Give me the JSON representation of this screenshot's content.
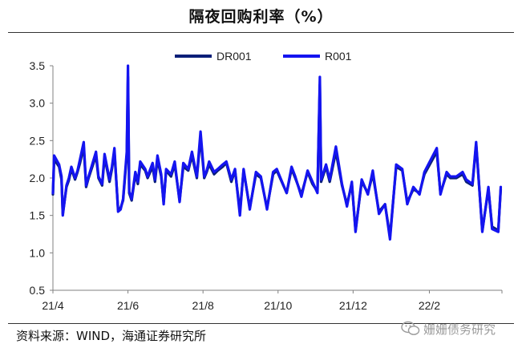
{
  "title": "隔夜回购利率（%）",
  "source": "资料来源：WIND，海通证券研究所",
  "watermark": "姗姗债务研究",
  "colors": {
    "dr001": "#0a1f78",
    "r001": "#1414f0",
    "axis": "#808080",
    "text": "#222222"
  },
  "chart_data": {
    "type": "line",
    "title": "隔夜回购利率（%）",
    "xlabel": "",
    "ylabel": "",
    "ylim": [
      0.5,
      3.5
    ],
    "yticks": [
      0.5,
      1.0,
      1.5,
      2.0,
      2.5,
      3.0,
      3.5
    ],
    "ytick_labels": [
      "0.5",
      "1.0",
      "1.5",
      "2.0",
      "2.5",
      "3.0",
      "3.5"
    ],
    "xlim": [
      "2021-04-01",
      "2022-04-01"
    ],
    "xtick_dates": [
      "2021-04-01",
      "2021-06-01",
      "2021-08-01",
      "2021-10-01",
      "2021-12-01",
      "2022-02-01"
    ],
    "xtick_labels": [
      "21/4",
      "21/6",
      "21/8",
      "21/10",
      "21/12",
      "22/2"
    ],
    "legend": "top-center",
    "grid": false,
    "series": [
      {
        "name": "DR001",
        "x": [
          "2021-04-01",
          "2021-04-02",
          "2021-04-06",
          "2021-04-08",
          "2021-04-09",
          "2021-04-12",
          "2021-04-14",
          "2021-04-16",
          "2021-04-19",
          "2021-04-21",
          "2021-04-23",
          "2021-04-26",
          "2021-04-28",
          "2021-04-30",
          "2021-05-06",
          "2021-05-08",
          "2021-05-11",
          "2021-05-13",
          "2021-05-17",
          "2021-05-19",
          "2021-05-21",
          "2021-05-24",
          "2021-05-26",
          "2021-05-28",
          "2021-05-31",
          "2021-06-01",
          "2021-06-02",
          "2021-06-04",
          "2021-06-07",
          "2021-06-09",
          "2021-06-11",
          "2021-06-15",
          "2021-06-17",
          "2021-06-21",
          "2021-06-23",
          "2021-06-25",
          "2021-06-28",
          "2021-06-30",
          "2021-07-02",
          "2021-07-06",
          "2021-07-09",
          "2021-07-13",
          "2021-07-16",
          "2021-07-20",
          "2021-07-23",
          "2021-07-27",
          "2021-07-30",
          "2021-08-02",
          "2021-08-04",
          "2021-08-06",
          "2021-08-10",
          "2021-08-13",
          "2021-08-17",
          "2021-08-20",
          "2021-08-24",
          "2021-08-27",
          "2021-08-31",
          "2021-09-03",
          "2021-09-08",
          "2021-09-13",
          "2021-09-17",
          "2021-09-22",
          "2021-09-27",
          "2021-09-30",
          "2021-10-08",
          "2021-10-12",
          "2021-10-15",
          "2021-10-20",
          "2021-10-25",
          "2021-10-29",
          "2021-11-02",
          "2021-11-04",
          "2021-11-05",
          "2021-11-09",
          "2021-11-12",
          "2021-11-17",
          "2021-11-22",
          "2021-11-26",
          "2021-11-30",
          "2021-12-03",
          "2021-12-08",
          "2021-12-13",
          "2021-12-17",
          "2021-12-22",
          "2021-12-27",
          "2021-12-31",
          "2022-01-05",
          "2022-01-10",
          "2022-01-14",
          "2022-01-19",
          "2022-01-24",
          "2022-01-28",
          "2022-02-07",
          "2022-02-10",
          "2022-02-15",
          "2022-02-18",
          "2022-02-23",
          "2022-02-28",
          "2022-03-03",
          "2022-03-08",
          "2022-03-11",
          "2022-03-16",
          "2022-03-21",
          "2022-03-24",
          "2022-03-29",
          "2022-03-31"
        ],
        "values": [
          1.78,
          2.25,
          2.15,
          1.98,
          1.52,
          1.88,
          1.97,
          2.12,
          1.98,
          2.08,
          2.2,
          2.42,
          1.88,
          2.0,
          2.3,
          2.0,
          1.9,
          2.28,
          1.95,
          2.12,
          2.35,
          1.58,
          1.6,
          1.7,
          2.3,
          3.35,
          1.8,
          1.7,
          2.05,
          1.92,
          2.18,
          2.1,
          2.0,
          2.15,
          1.95,
          2.25,
          2.02,
          1.68,
          2.1,
          2.02,
          2.18,
          1.7,
          2.15,
          2.1,
          2.3,
          2.0,
          2.55,
          2.0,
          2.08,
          2.18,
          2.05,
          2.1,
          2.15,
          2.2,
          1.95,
          2.1,
          1.55,
          2.1,
          1.6,
          2.05,
          2.0,
          1.6,
          2.05,
          2.1,
          1.8,
          2.12,
          2.0,
          1.78,
          2.08,
          1.92,
          1.82,
          3.25,
          1.95,
          2.15,
          1.95,
          2.35,
          1.9,
          1.65,
          1.92,
          1.3,
          1.95,
          1.8,
          2.05,
          1.55,
          1.65,
          1.22,
          2.15,
          2.1,
          1.68,
          1.85,
          1.8,
          2.05,
          2.35,
          1.8,
          2.05,
          2.0,
          2.0,
          2.05,
          1.95,
          1.9,
          2.45,
          1.3,
          1.85,
          1.35,
          1.3,
          1.85
        ]
      },
      {
        "name": "R001",
        "x": [
          "2021-04-01",
          "2021-04-02",
          "2021-04-06",
          "2021-04-08",
          "2021-04-09",
          "2021-04-12",
          "2021-04-14",
          "2021-04-16",
          "2021-04-19",
          "2021-04-21",
          "2021-04-23",
          "2021-04-26",
          "2021-04-28",
          "2021-04-30",
          "2021-05-06",
          "2021-05-08",
          "2021-05-11",
          "2021-05-13",
          "2021-05-17",
          "2021-05-19",
          "2021-05-21",
          "2021-05-24",
          "2021-05-26",
          "2021-05-28",
          "2021-05-31",
          "2021-06-01",
          "2021-06-02",
          "2021-06-04",
          "2021-06-07",
          "2021-06-09",
          "2021-06-11",
          "2021-06-15",
          "2021-06-17",
          "2021-06-21",
          "2021-06-23",
          "2021-06-25",
          "2021-06-28",
          "2021-06-30",
          "2021-07-02",
          "2021-07-06",
          "2021-07-09",
          "2021-07-13",
          "2021-07-16",
          "2021-07-20",
          "2021-07-23",
          "2021-07-27",
          "2021-07-30",
          "2021-08-02",
          "2021-08-04",
          "2021-08-06",
          "2021-08-10",
          "2021-08-13",
          "2021-08-17",
          "2021-08-20",
          "2021-08-24",
          "2021-08-27",
          "2021-08-31",
          "2021-09-03",
          "2021-09-08",
          "2021-09-13",
          "2021-09-17",
          "2021-09-22",
          "2021-09-27",
          "2021-09-30",
          "2021-10-08",
          "2021-10-12",
          "2021-10-15",
          "2021-10-20",
          "2021-10-25",
          "2021-10-29",
          "2021-11-02",
          "2021-11-04",
          "2021-11-05",
          "2021-11-09",
          "2021-11-12",
          "2021-11-17",
          "2021-11-22",
          "2021-11-26",
          "2021-11-30",
          "2021-12-03",
          "2021-12-08",
          "2021-12-13",
          "2021-12-17",
          "2021-12-22",
          "2021-12-27",
          "2021-12-31",
          "2022-01-05",
          "2022-01-10",
          "2022-01-14",
          "2022-01-19",
          "2022-01-24",
          "2022-01-28",
          "2022-02-07",
          "2022-02-10",
          "2022-02-15",
          "2022-02-18",
          "2022-02-23",
          "2022-02-28",
          "2022-03-03",
          "2022-03-08",
          "2022-03-11",
          "2022-03-16",
          "2022-03-21",
          "2022-03-24",
          "2022-03-29",
          "2022-03-31"
        ],
        "values": [
          1.8,
          2.3,
          2.18,
          2.02,
          1.5,
          1.9,
          2.0,
          2.15,
          2.0,
          2.1,
          2.25,
          2.48,
          1.9,
          2.02,
          2.35,
          2.02,
          1.92,
          2.32,
          1.98,
          2.15,
          2.4,
          1.55,
          1.58,
          1.72,
          2.35,
          3.5,
          1.82,
          1.72,
          2.08,
          1.95,
          2.22,
          2.12,
          2.02,
          2.2,
          1.98,
          2.3,
          2.05,
          1.65,
          2.12,
          2.05,
          2.22,
          1.68,
          2.2,
          2.12,
          2.35,
          2.02,
          2.62,
          2.02,
          2.1,
          2.22,
          2.08,
          2.12,
          2.18,
          2.22,
          1.98,
          2.12,
          1.5,
          2.12,
          1.58,
          2.08,
          2.02,
          1.58,
          2.08,
          2.12,
          1.8,
          2.15,
          2.02,
          1.75,
          2.1,
          1.95,
          1.8,
          3.35,
          1.98,
          2.18,
          1.98,
          2.42,
          1.92,
          1.62,
          1.95,
          1.28,
          1.98,
          1.78,
          2.1,
          1.52,
          1.65,
          1.18,
          2.18,
          2.12,
          1.65,
          1.88,
          1.78,
          2.08,
          2.4,
          1.78,
          2.08,
          2.02,
          2.02,
          2.08,
          1.98,
          1.92,
          2.48,
          1.28,
          1.88,
          1.32,
          1.28,
          1.88
        ]
      }
    ]
  }
}
